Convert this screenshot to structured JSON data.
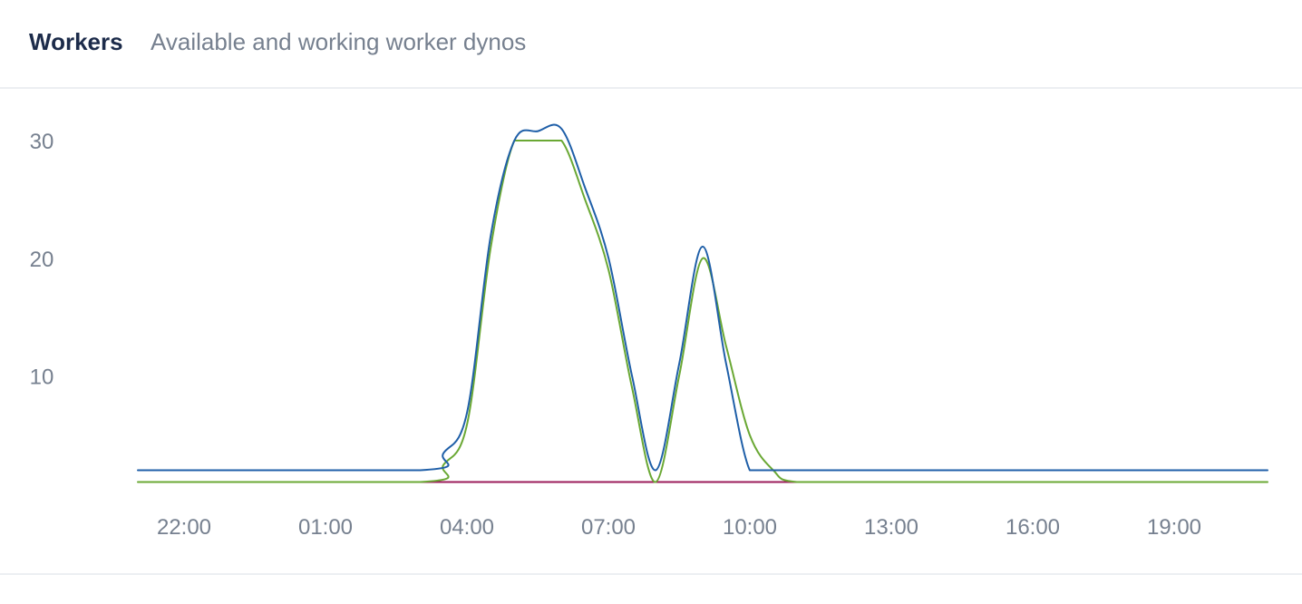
{
  "header": {
    "title": "Workers",
    "subtitle": "Available and working worker dynos"
  },
  "chart_data": {
    "type": "line",
    "title": "Workers",
    "subtitle": "Available and working worker dynos",
    "xlabel": "",
    "ylabel": "",
    "xlim": [
      20.5,
      44.5
    ],
    "ylim": [
      0,
      30
    ],
    "yticks": [
      10,
      20,
      30
    ],
    "xticks": [
      {
        "value": 22,
        "label": "22:00"
      },
      {
        "value": 25,
        "label": "01:00"
      },
      {
        "value": 28,
        "label": "04:00"
      },
      {
        "value": 31,
        "label": "07:00"
      },
      {
        "value": 34,
        "label": "10:00"
      },
      {
        "value": 37,
        "label": "13:00"
      },
      {
        "value": 40,
        "label": "16:00"
      },
      {
        "value": 43,
        "label": "19:00"
      }
    ],
    "grid": false,
    "legend": "none",
    "series": [
      {
        "color": "#1f5fa8",
        "x": [
          21,
          27,
          27.5,
          28,
          28.5,
          29,
          29.5,
          30,
          30.5,
          31,
          31.5,
          32,
          32.5,
          33,
          33.5,
          34,
          34.5,
          35,
          37,
          40,
          45
        ],
        "y": [
          2,
          2,
          3.5,
          7,
          22,
          30,
          30.8,
          31,
          26,
          20,
          10,
          2,
          11,
          21,
          11,
          2,
          2,
          2,
          2,
          2,
          2
        ]
      },
      {
        "color": "#6aa834",
        "x": [
          21,
          27,
          27.5,
          28,
          28.5,
          29,
          29.5,
          30,
          30.5,
          31,
          31.5,
          32,
          32.5,
          33,
          33.5,
          34,
          34.5,
          35,
          37,
          40,
          45
        ],
        "y": [
          1,
          1,
          2.5,
          6,
          21,
          30,
          30,
          30,
          25,
          19,
          9,
          1,
          10,
          20,
          12.5,
          5,
          2,
          1,
          1,
          1,
          1
        ]
      },
      {
        "color": "#9b1b5a",
        "x": [
          27,
          35
        ],
        "y": [
          1,
          1
        ]
      }
    ]
  }
}
